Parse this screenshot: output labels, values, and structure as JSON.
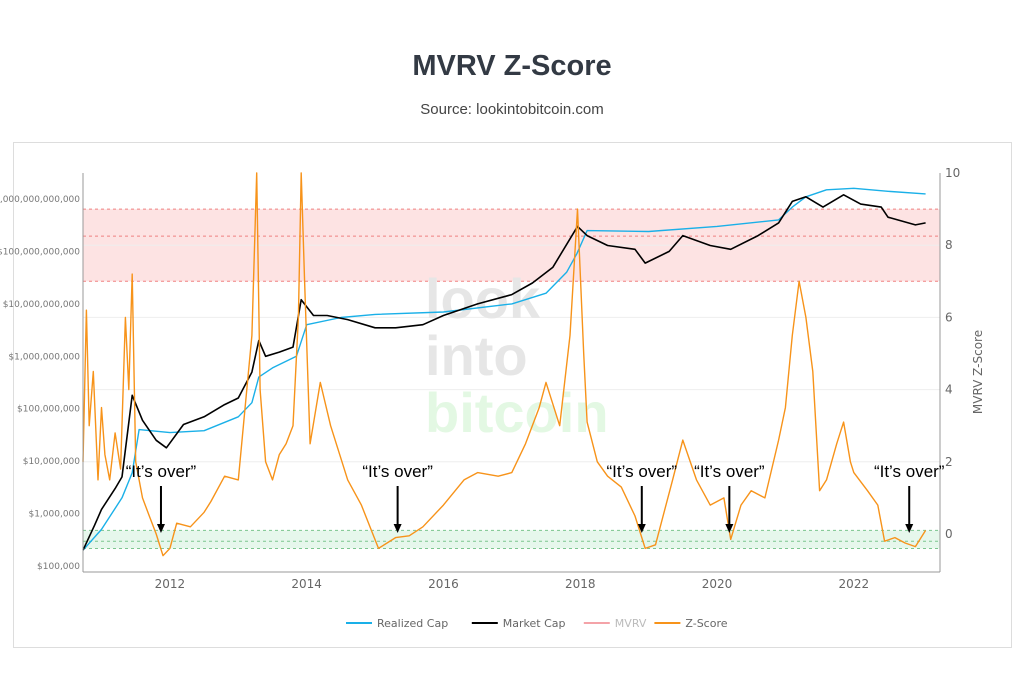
{
  "header": {
    "title": "MVRV Z-Score",
    "source": "Source: lookintobitcoin.com"
  },
  "watermark": [
    "look",
    "into",
    "bitcoin"
  ],
  "chart_data": {
    "type": "line",
    "title": "MVRV Z-Score",
    "subtitle": "Source: lookintobitcoin.com",
    "x_range": [
      2010.73,
      2023.26
    ],
    "x_ticks": [
      "2012",
      "2014",
      "2016",
      "2018",
      "2020",
      "2022"
    ],
    "left_axis": {
      "scale": "log",
      "range": [
        100000,
        2000000000000
      ],
      "tick_labels": [
        "$100,000",
        "$1,000,000",
        "$10,000,000",
        "$100,000,000",
        "$1,000,000,000",
        "$10,000,000,000",
        "$100,000,000,000",
        "1,000,000,000,000"
      ]
    },
    "right_axis": {
      "label": "MVRV Z-Score",
      "range": [
        -1.05,
        10
      ],
      "tick_labels": [
        "0",
        "2",
        "4",
        "6",
        "8",
        "10"
      ]
    },
    "grid": true,
    "legend_position": "bottom",
    "bands": [
      {
        "axis": "right",
        "from": 7,
        "to": 9,
        "mid": 8.25,
        "color": "#fde3e3",
        "line_color": "#f08080"
      },
      {
        "axis": "right",
        "from": -0.4,
        "to": 0.1,
        "mid": -0.2,
        "color": "#e6f7ec",
        "line_color": "#7cc58f"
      }
    ],
    "series": [
      {
        "name": "Realized Cap",
        "axis": "left",
        "color": "#1ab0e8",
        "x": [
          2010.73,
          2011.0,
          2011.3,
          2011.45,
          2011.55,
          2012.0,
          2012.5,
          2013.0,
          2013.2,
          2013.3,
          2013.5,
          2013.85,
          2014.0,
          2014.5,
          2015.0,
          2016.0,
          2017.0,
          2017.5,
          2017.8,
          2017.95,
          2018.1,
          2019.0,
          2020.0,
          2020.9,
          2021.1,
          2021.3,
          2021.6,
          2022.0,
          2022.5,
          2023.05
        ],
        "y": [
          200000,
          500000,
          2000000,
          6000000,
          40000000,
          35000000,
          38000000,
          70000000,
          130000000,
          400000000,
          600000000,
          1000000000,
          4000000000,
          5500000000,
          6300000000,
          7000000000,
          10000000000,
          16000000000,
          40000000000,
          90000000000,
          250000000000,
          240000000000,
          300000000000,
          400000000000,
          700000000000,
          1100000000000,
          1500000000000,
          1600000000000,
          1400000000000,
          1250000000000
        ]
      },
      {
        "name": "Market Cap",
        "axis": "left",
        "color": "#000000",
        "x": [
          2010.73,
          2010.9,
          2011.0,
          2011.2,
          2011.3,
          2011.45,
          2011.6,
          2011.8,
          2011.95,
          2012.2,
          2012.5,
          2012.8,
          2013.0,
          2013.2,
          2013.3,
          2013.4,
          2013.6,
          2013.8,
          2013.92,
          2014.1,
          2014.3,
          2014.6,
          2015.0,
          2015.3,
          2015.7,
          2016.0,
          2016.5,
          2017.0,
          2017.3,
          2017.6,
          2017.96,
          2018.1,
          2018.4,
          2018.8,
          2018.95,
          2019.3,
          2019.5,
          2019.9,
          2020.2,
          2020.6,
          2020.9,
          2021.1,
          2021.3,
          2021.55,
          2021.85,
          2022.1,
          2022.4,
          2022.5,
          2022.9,
          2023.05
        ],
        "y": [
          200000,
          600000,
          1200000,
          3000000,
          5000000,
          180000000,
          60000000,
          25000000,
          18000000,
          50000000,
          70000000,
          120000000,
          160000000,
          500000000,
          2000000000,
          1000000000,
          1200000000,
          1500000000,
          12000000000,
          6000000000,
          6000000000,
          5000000000,
          3500000000,
          3500000000,
          4000000000,
          6000000000,
          10000000000,
          15000000000,
          25000000000,
          50000000000,
          300000000000,
          200000000000,
          130000000000,
          110000000000,
          60000000000,
          100000000000,
          200000000000,
          130000000000,
          110000000000,
          200000000000,
          350000000000,
          900000000000,
          1100000000000,
          700000000000,
          1200000000000,
          800000000000,
          700000000000,
          450000000000,
          320000000000,
          350000000000
        ]
      },
      {
        "name": "MVRV",
        "axis": "right",
        "color": "#f4a3a8",
        "hidden": true,
        "x": [],
        "y": []
      },
      {
        "name": "Z-Score",
        "axis": "right",
        "color": "#f7931a",
        "x": [
          2010.73,
          2010.78,
          2010.82,
          2010.88,
          2010.95,
          2011.0,
          2011.05,
          2011.12,
          2011.2,
          2011.28,
          2011.35,
          2011.4,
          2011.45,
          2011.5,
          2011.6,
          2011.7,
          2011.8,
          2011.9,
          2012.0,
          2012.1,
          2012.3,
          2012.5,
          2012.6,
          2012.8,
          2013.0,
          2013.1,
          2013.2,
          2013.27,
          2013.32,
          2013.4,
          2013.5,
          2013.6,
          2013.7,
          2013.8,
          2013.88,
          2013.92,
          2013.97,
          2014.05,
          2014.2,
          2014.35,
          2014.6,
          2014.8,
          2015.05,
          2015.3,
          2015.5,
          2015.7,
          2016.0,
          2016.3,
          2016.5,
          2016.8,
          2017.0,
          2017.2,
          2017.4,
          2017.5,
          2017.7,
          2017.85,
          2017.96,
          2018.05,
          2018.1,
          2018.25,
          2018.4,
          2018.6,
          2018.8,
          2018.95,
          2019.1,
          2019.35,
          2019.5,
          2019.7,
          2019.9,
          2020.1,
          2020.2,
          2020.35,
          2020.5,
          2020.7,
          2020.9,
          2021.0,
          2021.1,
          2021.2,
          2021.3,
          2021.4,
          2021.5,
          2021.6,
          2021.75,
          2021.85,
          2021.95,
          2022.0,
          2022.2,
          2022.35,
          2022.45,
          2022.6,
          2022.75,
          2022.9,
          2023.05
        ],
        "y": [
          2.0,
          6.2,
          3.0,
          4.5,
          1.5,
          3.5,
          2.2,
          1.5,
          2.8,
          1.8,
          6.0,
          4.0,
          7.2,
          2.0,
          1.0,
          0.5,
          0.0,
          -0.6,
          -0.4,
          0.3,
          0.2,
          0.6,
          0.9,
          1.6,
          1.5,
          3.5,
          5.5,
          10.0,
          4.0,
          2.0,
          1.5,
          2.2,
          2.5,
          3.0,
          6.0,
          10.0,
          7.0,
          2.5,
          4.2,
          3.0,
          1.5,
          0.8,
          -0.4,
          -0.1,
          -0.05,
          0.2,
          0.8,
          1.5,
          1.7,
          1.6,
          1.7,
          2.5,
          3.5,
          4.2,
          3.0,
          5.5,
          9.0,
          5.0,
          3.1,
          2.0,
          1.6,
          1.3,
          0.5,
          -0.4,
          -0.3,
          1.5,
          2.6,
          1.5,
          0.8,
          1.0,
          -0.15,
          0.8,
          1.2,
          1.0,
          2.6,
          3.5,
          5.5,
          7.0,
          6.0,
          4.5,
          1.2,
          1.5,
          2.5,
          3.1,
          2.0,
          1.7,
          1.2,
          0.8,
          -0.2,
          -0.1,
          -0.25,
          -0.35,
          0.1
        ]
      }
    ],
    "annotations": [
      {
        "text": "“It’s over”",
        "x": 2011.87
      },
      {
        "text": "“It’s over”",
        "x": 2015.33
      },
      {
        "text": "“It’s over”",
        "x": 2018.9
      },
      {
        "text": "“It’s over”",
        "x": 2020.18
      },
      {
        "text": "“It’s over”",
        "x": 2022.81
      }
    ]
  }
}
